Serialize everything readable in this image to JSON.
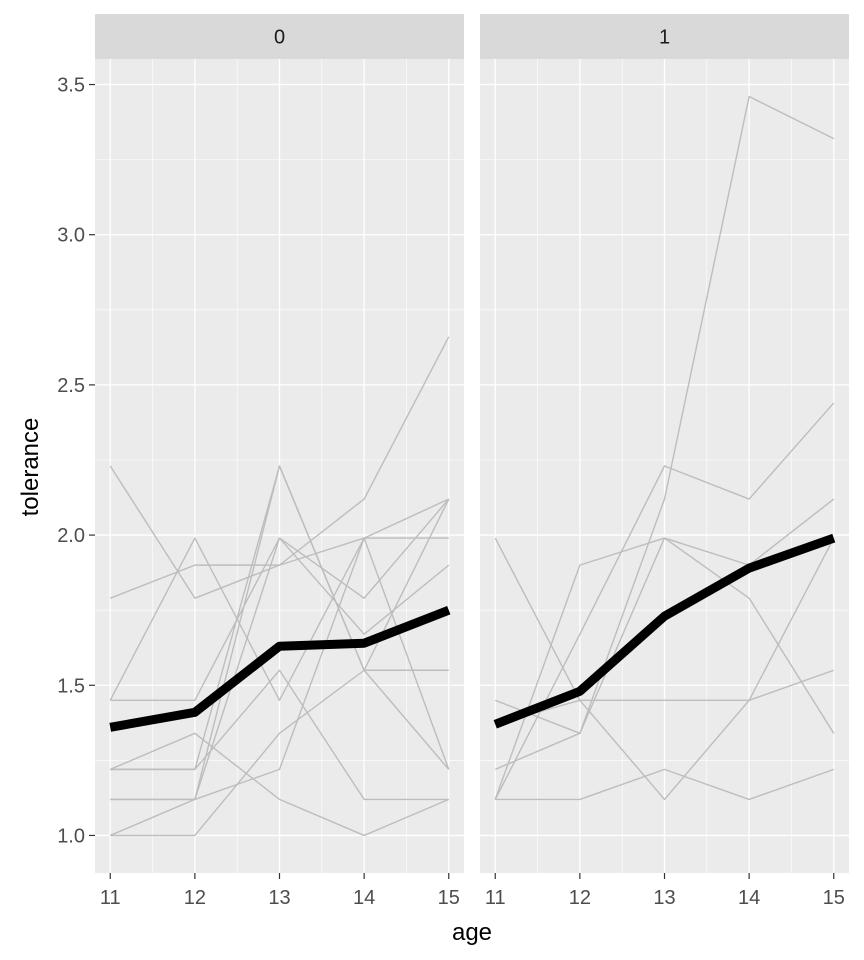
{
  "chart_data": {
    "type": "line",
    "facets": [
      "0",
      "1"
    ],
    "xlabel": "age",
    "ylabel": "tolerance",
    "x": [
      11,
      12,
      13,
      14,
      15
    ],
    "xlim": [
      10.82,
      15.18
    ],
    "ylim": [
      0.875,
      3.585
    ],
    "yticks": [
      1.0,
      1.5,
      2.0,
      2.5,
      3.0,
      3.5
    ],
    "yticks_labels": [
      "1.0",
      "1.5",
      "2.0",
      "2.5",
      "3.0",
      "3.5"
    ],
    "xticks_labels": [
      "11",
      "12",
      "13",
      "14",
      "15"
    ],
    "grid": true,
    "colors": {
      "panel_bg": "#ebebeb",
      "strip_bg": "#d9d9d9",
      "grid_major": "#ffffff",
      "individual_line": "#bdbdbd",
      "mean_line": "#000000"
    },
    "panels": [
      {
        "facet": "0",
        "mean": [
          1.36,
          1.41,
          1.63,
          1.64,
          1.75
        ],
        "individuals": [
          [
            1.79,
            1.9,
            1.9,
            1.99,
            1.99
          ],
          [
            1.12,
            1.12,
            1.22,
            1.99,
            1.22
          ],
          [
            1.45,
            1.45,
            1.99,
            1.79,
            2.12
          ],
          [
            1.22,
            1.22,
            1.55,
            1.12,
            1.12
          ],
          [
            1.45,
            1.99,
            1.45,
            1.99,
            2.12
          ],
          [
            1.0,
            1.0,
            1.34,
            1.55,
            2.12
          ],
          [
            2.23,
            1.79,
            1.9,
            2.12,
            2.66
          ],
          [
            1.12,
            1.12,
            2.23,
            1.55,
            1.55
          ],
          [
            1.22,
            1.34,
            1.12,
            1.0,
            1.12
          ],
          [
            1.0,
            1.12,
            1.99,
            1.67,
            1.9
          ],
          [
            1.22,
            1.22,
            2.23,
            1.55,
            1.22
          ]
        ]
      },
      {
        "facet": "1",
        "mean": [
          1.37,
          1.48,
          1.73,
          1.89,
          1.99
        ],
        "individuals": [
          [
            1.12,
            1.12,
            1.22,
            1.12,
            1.22
          ],
          [
            1.22,
            1.34,
            1.99,
            1.79,
            1.34
          ],
          [
            1.99,
            1.45,
            1.12,
            1.45,
            1.99
          ],
          [
            1.12,
            1.67,
            2.23,
            2.12,
            2.44
          ],
          [
            1.45,
            1.34,
            2.12,
            3.46,
            3.32
          ],
          [
            1.12,
            1.9,
            1.99,
            1.9,
            2.12
          ],
          [
            1.37,
            1.45,
            1.45,
            1.45,
            1.55
          ]
        ]
      }
    ]
  }
}
